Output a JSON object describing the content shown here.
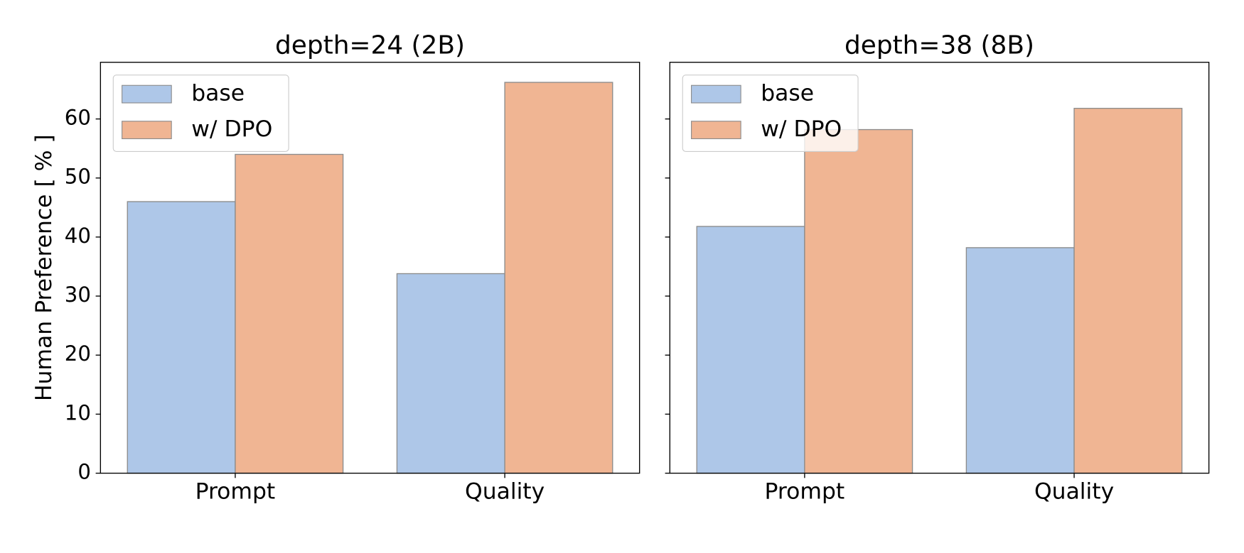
{
  "chart_data": [
    {
      "type": "bar",
      "title": "depth=24 (2B)",
      "ylabel": "Human Preference [ % ]",
      "categories": [
        "Prompt",
        "Quality"
      ],
      "series": [
        {
          "name": "base",
          "color": "#aec7e8",
          "values": [
            46,
            33.8
          ]
        },
        {
          "name": "w/ DPO",
          "color": "#f0b593",
          "values": [
            54,
            66.2
          ]
        }
      ],
      "ylim": [
        0,
        69.6
      ],
      "yticks": [
        0,
        10,
        20,
        30,
        40,
        50,
        60
      ],
      "legend": "upper left"
    },
    {
      "type": "bar",
      "title": "depth=38 (8B)",
      "categories": [
        "Prompt",
        "Quality"
      ],
      "series": [
        {
          "name": "base",
          "color": "#aec7e8",
          "values": [
            41.8,
            38.2
          ]
        },
        {
          "name": "w/ DPO",
          "color": "#f0b593",
          "values": [
            58.2,
            61.8
          ]
        }
      ],
      "ylim": [
        0,
        69.6
      ],
      "yticks": [
        0,
        10,
        20,
        30,
        40,
        50,
        60
      ],
      "legend": "upper left"
    }
  ]
}
